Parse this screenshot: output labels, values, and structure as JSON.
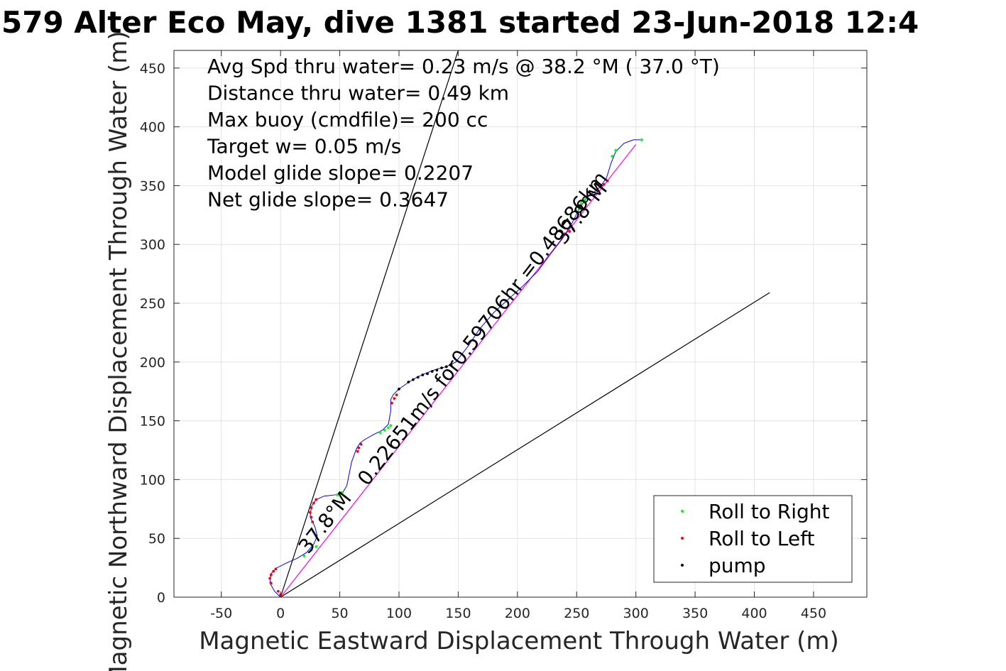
{
  "chart_data": {
    "type": "line",
    "title": "579 Alter Eco May, dive 1381 started 23-Jun-2018 12:4",
    "xlabel": "Magnetic Eastward Displacement Through Water (m)",
    "ylabel": "Magnetic Northward Displacement Through Water (m)",
    "xlim": [
      -90,
      495
    ],
    "ylim": [
      0,
      465
    ],
    "xticks": [
      -50,
      0,
      50,
      100,
      150,
      200,
      250,
      300,
      350,
      400,
      450
    ],
    "yticks": [
      0,
      50,
      100,
      150,
      200,
      250,
      300,
      350,
      400,
      450
    ],
    "xtick_labels": [
      "-50",
      "0",
      "50",
      "100",
      "150",
      "200",
      "250",
      "300",
      "350",
      "400",
      "450"
    ],
    "ytick_labels": [
      "0",
      "50",
      "100",
      "150",
      "200",
      "250",
      "300",
      "350",
      "400",
      "450"
    ],
    "grid": true,
    "info_lines": [
      "Avg Spd thru water=  0.23 m/s @  38.2 °M ( 37.0 °T)",
      "Distance thru water=  0.49 km",
      "Max buoy (cmdfile)= 200 cc",
      "Target w= 0.05 m/s",
      "Model glide slope= 0.2207",
      "Net glide slope= 0.3647"
    ],
    "annotations": [
      {
        "text": "0.22651m/s for0.59706hr =0.48686km",
        "x": 175,
        "y": 225,
        "rotate": -52
      },
      {
        "text": "37.8°M",
        "x": 42,
        "y": 60,
        "rotate": -52
      },
      {
        "text": "37.8°M",
        "x": 258,
        "y": 323,
        "rotate": -52
      }
    ],
    "legend": {
      "placement": "bottom-right",
      "entries": [
        {
          "label": "Roll to Right",
          "color": "#00ff00"
        },
        {
          "label": "Roll to Left",
          "color": "#ff0000"
        },
        {
          "label": "pump",
          "color": "#000000"
        }
      ]
    },
    "colors": {
      "track": "#0000ff",
      "roll_right": "#00ff00",
      "roll_left": "#ff0000",
      "pump": "#000000",
      "net_line": "#ff00ff",
      "reference": "#000000",
      "grid": "#e3e3e3"
    },
    "reference_lines": [
      {
        "name": "cone-upper",
        "x": [
          0,
          150
        ],
        "y": [
          0,
          465
        ]
      },
      {
        "name": "cone-lower",
        "x": [
          0,
          413
        ],
        "y": [
          0,
          259
        ]
      },
      {
        "name": "net-heading",
        "x": [
          0,
          300
        ],
        "y": [
          0,
          385
        ]
      }
    ],
    "series": [
      {
        "name": "track",
        "x": [
          0,
          -5,
          -9,
          -8,
          -3,
          5,
          14,
          22,
          28,
          31,
          29,
          25,
          26,
          30,
          37,
          46,
          52,
          56,
          60,
          64,
          67,
          71,
          78,
          86,
          91,
          93,
          93,
          95,
          100,
          107,
          115,
          124,
          132,
          140,
          148,
          158,
          168,
          180,
          193,
          205,
          217,
          228,
          238,
          246,
          253,
          260,
          268,
          275,
          279,
          283,
          290,
          298,
          306
        ],
        "y": [
          0,
          5,
          12,
          20,
          25,
          29,
          33,
          38,
          45,
          52,
          60,
          68,
          77,
          83,
          86,
          87,
          88,
          95,
          115,
          126,
          131,
          134,
          138,
          142,
          147,
          158,
          168,
          172,
          177,
          182,
          187,
          191,
          194,
          196,
          200,
          213,
          228,
          242,
          254,
          265,
          277,
          292,
          305,
          318,
          332,
          341,
          347,
          356,
          369,
          379,
          386,
          389,
          389
        ]
      },
      {
        "name": "Roll to Right",
        "x": [
          20,
          26,
          30,
          48,
          52,
          84,
          88,
          91,
          93,
          252,
          254,
          257,
          280,
          283,
          305
        ],
        "y": [
          35,
          40,
          43,
          87,
          89,
          140,
          142,
          144,
          146,
          330,
          335,
          338,
          375,
          380,
          389
        ]
      },
      {
        "name": "Roll to Left",
        "x": [
          -8,
          -9,
          -8,
          -6,
          -4,
          -2,
          0,
          27,
          26,
          25,
          26,
          28,
          30,
          65,
          66,
          68,
          94,
          96,
          98,
          240,
          244,
          247,
          270,
          273,
          276
        ],
        "y": [
          12,
          16,
          19,
          22,
          24,
          5,
          2,
          64,
          68,
          72,
          76,
          80,
          83,
          124,
          127,
          130,
          165,
          169,
          172,
          309,
          311,
          313,
          349,
          351,
          354
        ]
      },
      {
        "name": "pump",
        "x": [
          100,
          108,
          112,
          116,
          120,
          124,
          128,
          132,
          136,
          140,
          144
        ],
        "y": [
          177,
          183,
          185,
          187,
          189,
          190,
          192,
          193,
          195,
          196,
          198
        ]
      }
    ]
  }
}
